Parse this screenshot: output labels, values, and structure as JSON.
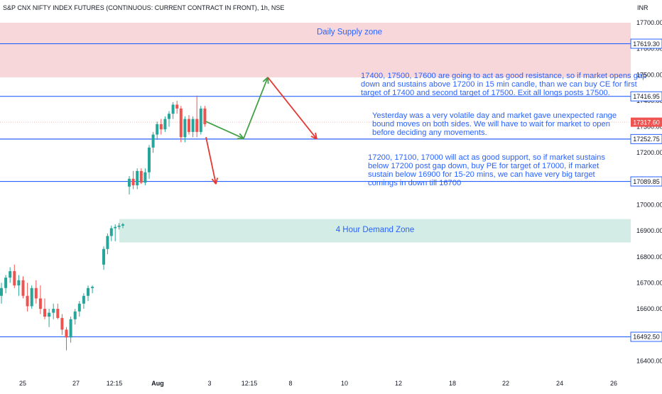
{
  "header": {
    "symbol_title": "S&P CNX NIFTY INDEX FUTURES (CONTINUOUS: CURRENT CONTRACT IN FRONT), 1h, NSE",
    "currency": "INR"
  },
  "colors": {
    "up": "#26a69a",
    "down": "#ef5350",
    "level_line": "#2962ff",
    "text_blue": "#2962ff",
    "supply_zone": "#f8d7db",
    "demand_zone": "#d3ede6",
    "arrow_green": "#43a047",
    "arrow_red": "#e53935",
    "last_price": "#ef5350"
  },
  "chart_data": {
    "type": "candlestick",
    "title": "S&P CNX NIFTY INDEX FUTURES (CONTINUOUS: CURRENT CONTRACT IN FRONT), 1h, NSE",
    "y_range": [
      16360,
      17760
    ],
    "y_ticks": [
      17700,
      17600,
      17500,
      17400,
      17300,
      17200,
      17100,
      17000,
      16900,
      16800,
      16700,
      16600,
      16500,
      16400
    ],
    "x_tick_labels": [
      "25",
      "27",
      "12:15",
      "Aug",
      "3",
      "12:15",
      "8",
      "10",
      "12",
      "18",
      "22",
      "24",
      "26"
    ],
    "levels": [
      {
        "label": "17619.30",
        "value": 17619.3
      },
      {
        "label": "17416.95",
        "value": 17416.95
      },
      {
        "label": "17252.75",
        "value": 17252.75
      },
      {
        "label": "17089.85",
        "value": 17089.85
      },
      {
        "label": "16492.50",
        "value": 16492.5
      }
    ],
    "last_price": {
      "label": "17317.60",
      "value": 17317.6
    },
    "zones": [
      {
        "name": "Daily Supply zone",
        "from": 17490,
        "to": 17700
      },
      {
        "name": "4 Hour Demand Zone",
        "from": 16855,
        "to": 16945
      }
    ],
    "candles": [
      {
        "o": 16650,
        "h": 16700,
        "l": 16620,
        "c": 16680
      },
      {
        "o": 16680,
        "h": 16730,
        "l": 16660,
        "c": 16720
      },
      {
        "o": 16720,
        "h": 16760,
        "l": 16700,
        "c": 16745
      },
      {
        "o": 16745,
        "h": 16770,
        "l": 16680,
        "c": 16690
      },
      {
        "o": 16690,
        "h": 16730,
        "l": 16650,
        "c": 16710
      },
      {
        "o": 16710,
        "h": 16725,
        "l": 16640,
        "c": 16650
      },
      {
        "o": 16650,
        "h": 16700,
        "l": 16590,
        "c": 16610
      },
      {
        "o": 16610,
        "h": 16690,
        "l": 16600,
        "c": 16680
      },
      {
        "o": 16680,
        "h": 16710,
        "l": 16620,
        "c": 16640
      },
      {
        "o": 16640,
        "h": 16690,
        "l": 16580,
        "c": 16600
      },
      {
        "o": 16600,
        "h": 16640,
        "l": 16560,
        "c": 16570
      },
      {
        "o": 16570,
        "h": 16600,
        "l": 16530,
        "c": 16585
      },
      {
        "o": 16585,
        "h": 16620,
        "l": 16560,
        "c": 16600
      },
      {
        "o": 16600,
        "h": 16620,
        "l": 16560,
        "c": 16565
      },
      {
        "o": 16565,
        "h": 16580,
        "l": 16500,
        "c": 16520
      },
      {
        "o": 16520,
        "h": 16530,
        "l": 16440,
        "c": 16490
      },
      {
        "o": 16490,
        "h": 16570,
        "l": 16470,
        "c": 16560
      },
      {
        "o": 16560,
        "h": 16600,
        "l": 16540,
        "c": 16590
      },
      {
        "o": 16590,
        "h": 16630,
        "l": 16570,
        "c": 16620
      },
      {
        "o": 16620,
        "h": 16660,
        "l": 16600,
        "c": 16650
      },
      {
        "o": 16650,
        "h": 16690,
        "l": 16630,
        "c": 16680
      },
      {
        "o": 16680,
        "h": 16690,
        "l": 16660,
        "c": 16685
      },
      {
        "o": 16770,
        "h": 16840,
        "l": 16750,
        "c": 16830
      },
      {
        "o": 16830,
        "h": 16890,
        "l": 16810,
        "c": 16880
      },
      {
        "o": 16880,
        "h": 16920,
        "l": 16860,
        "c": 16910
      },
      {
        "o": 16910,
        "h": 16925,
        "l": 16860,
        "c": 16915
      },
      {
        "o": 16915,
        "h": 16930,
        "l": 16905,
        "c": 16920
      },
      {
        "o": 16920,
        "h": 16930,
        "l": 16910,
        "c": 16925
      },
      {
        "o": 17070,
        "h": 17110,
        "l": 17040,
        "c": 17100
      },
      {
        "o": 17100,
        "h": 17130,
        "l": 17060,
        "c": 17075
      },
      {
        "o": 17075,
        "h": 17140,
        "l": 17060,
        "c": 17130
      },
      {
        "o": 17130,
        "h": 17140,
        "l": 17080,
        "c": 17085
      },
      {
        "o": 17085,
        "h": 17140,
        "l": 17075,
        "c": 17125
      },
      {
        "o": 17125,
        "h": 17230,
        "l": 17100,
        "c": 17220
      },
      {
        "o": 17220,
        "h": 17280,
        "l": 17200,
        "c": 17270
      },
      {
        "o": 17270,
        "h": 17320,
        "l": 17250,
        "c": 17310
      },
      {
        "o": 17310,
        "h": 17330,
        "l": 17270,
        "c": 17290
      },
      {
        "o": 17290,
        "h": 17340,
        "l": 17280,
        "c": 17330
      },
      {
        "o": 17330,
        "h": 17360,
        "l": 17300,
        "c": 17350
      },
      {
        "o": 17350,
        "h": 17395,
        "l": 17330,
        "c": 17385
      },
      {
        "o": 17385,
        "h": 17400,
        "l": 17350,
        "c": 17370
      },
      {
        "o": 17370,
        "h": 17380,
        "l": 17240,
        "c": 17260
      },
      {
        "o": 17260,
        "h": 17340,
        "l": 17240,
        "c": 17330
      },
      {
        "o": 17330,
        "h": 17345,
        "l": 17270,
        "c": 17280
      },
      {
        "o": 17280,
        "h": 17340,
        "l": 17260,
        "c": 17330
      },
      {
        "o": 17330,
        "h": 17420,
        "l": 17260,
        "c": 17280
      },
      {
        "o": 17280,
        "h": 17380,
        "l": 17270,
        "c": 17370
      },
      {
        "o": 17370,
        "h": 17380,
        "l": 17300,
        "c": 17310
      }
    ],
    "arrows": [
      {
        "color": "green",
        "from": [
          0,
          17320
        ],
        "to": [
          1,
          17255
        ]
      },
      {
        "color": "green",
        "from": [
          1,
          17255
        ],
        "to": [
          2,
          17490
        ]
      },
      {
        "color": "red",
        "from": [
          2,
          17490
        ],
        "to": [
          3,
          17252.75
        ]
      },
      {
        "color": "red",
        "from": [
          0,
          17260
        ],
        "to": [
          0.2,
          17080
        ]
      }
    ],
    "annotations": [
      {
        "lines": [
          "17400, 17500, 17600 are going to act as good resistance, so if market opens gap",
          "down and sustains above 17200 in 15 min candle, than we can buy CE for first",
          "target of 17400 and second target of 17500. Exit all longs posts 17500."
        ]
      },
      {
        "lines": [
          "Yesterday was a very volatile day and market gave unexpected range",
          "bound moves on both sides. We will have to wait for market to open",
          "before deciding any movements."
        ]
      },
      {
        "lines": [
          "17200, 17100, 17000 will act as good support, so if market sustains",
          "below 17200 post gap down, buy PE for target of 17000, if market",
          "sustain below 16900 for 15-20 mins, we can have very big target",
          "comings in down till 16700"
        ]
      }
    ]
  }
}
